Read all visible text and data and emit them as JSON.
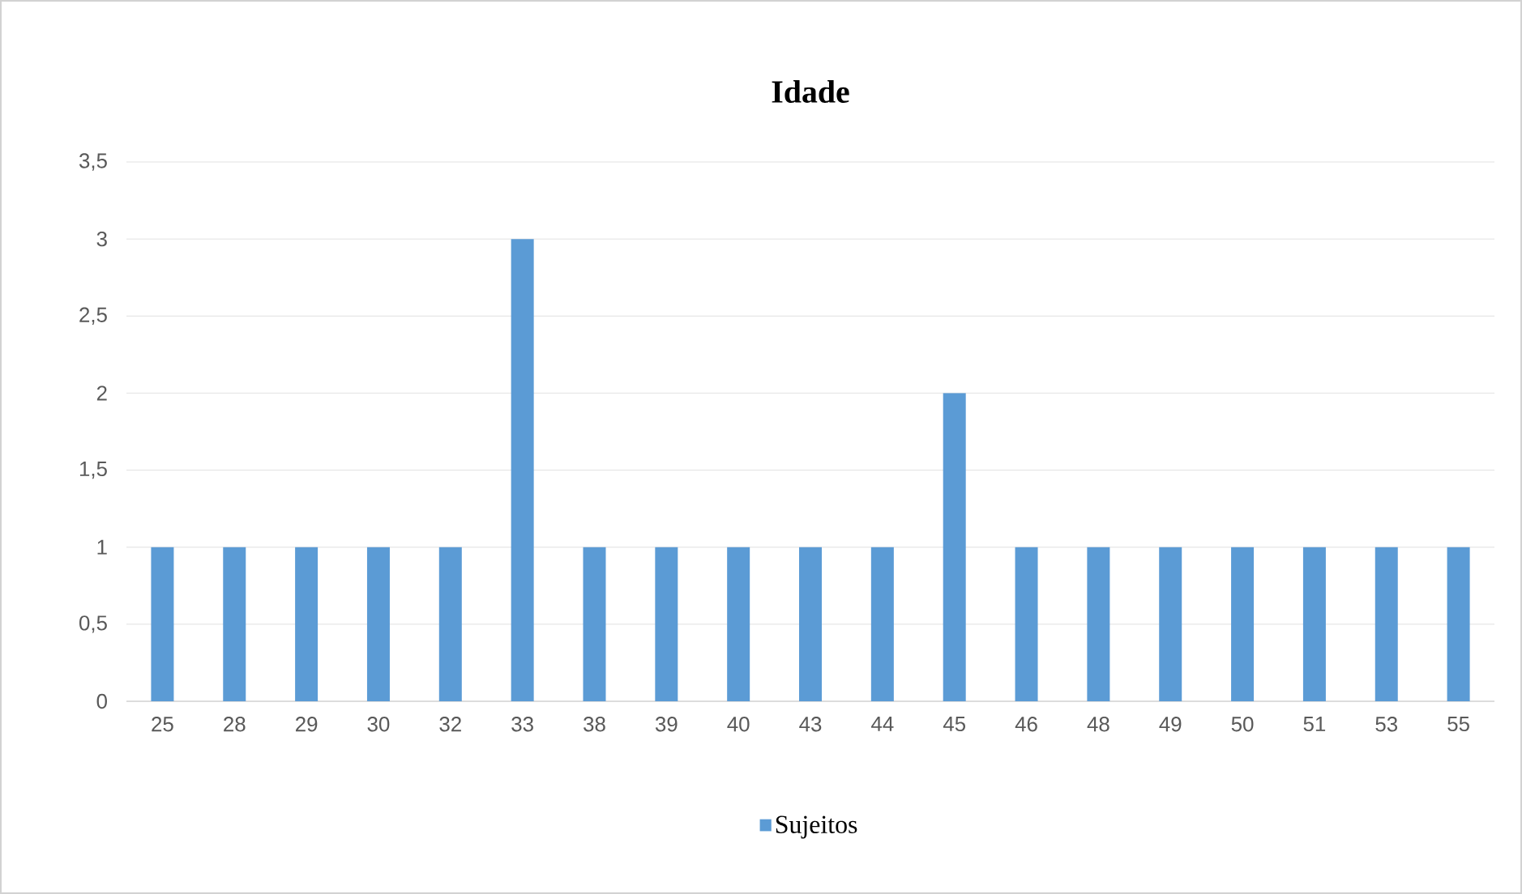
{
  "chart_data": {
    "type": "bar",
    "title": "Idade",
    "categories": [
      "25",
      "28",
      "29",
      "30",
      "32",
      "33",
      "38",
      "39",
      "40",
      "43",
      "44",
      "45",
      "46",
      "48",
      "49",
      "50",
      "51",
      "53",
      "55"
    ],
    "series": [
      {
        "name": "Sujeitos",
        "color": "#5b9bd5",
        "values": [
          1,
          1,
          1,
          1,
          1,
          3,
          1,
          1,
          1,
          1,
          1,
          2,
          1,
          1,
          1,
          1,
          1,
          1,
          1
        ]
      }
    ],
    "ylim": [
      0,
      3.5
    ],
    "yticks": [
      0,
      {
        "value": 0.5,
        "label": "0,5"
      },
      1,
      {
        "value": 1.5,
        "label": "1,5"
      },
      2,
      {
        "value": 2.5,
        "label": "2,5"
      },
      3,
      {
        "value": 3.5,
        "label": "3,5"
      }
    ],
    "grid": "y",
    "legend": "bottom"
  }
}
